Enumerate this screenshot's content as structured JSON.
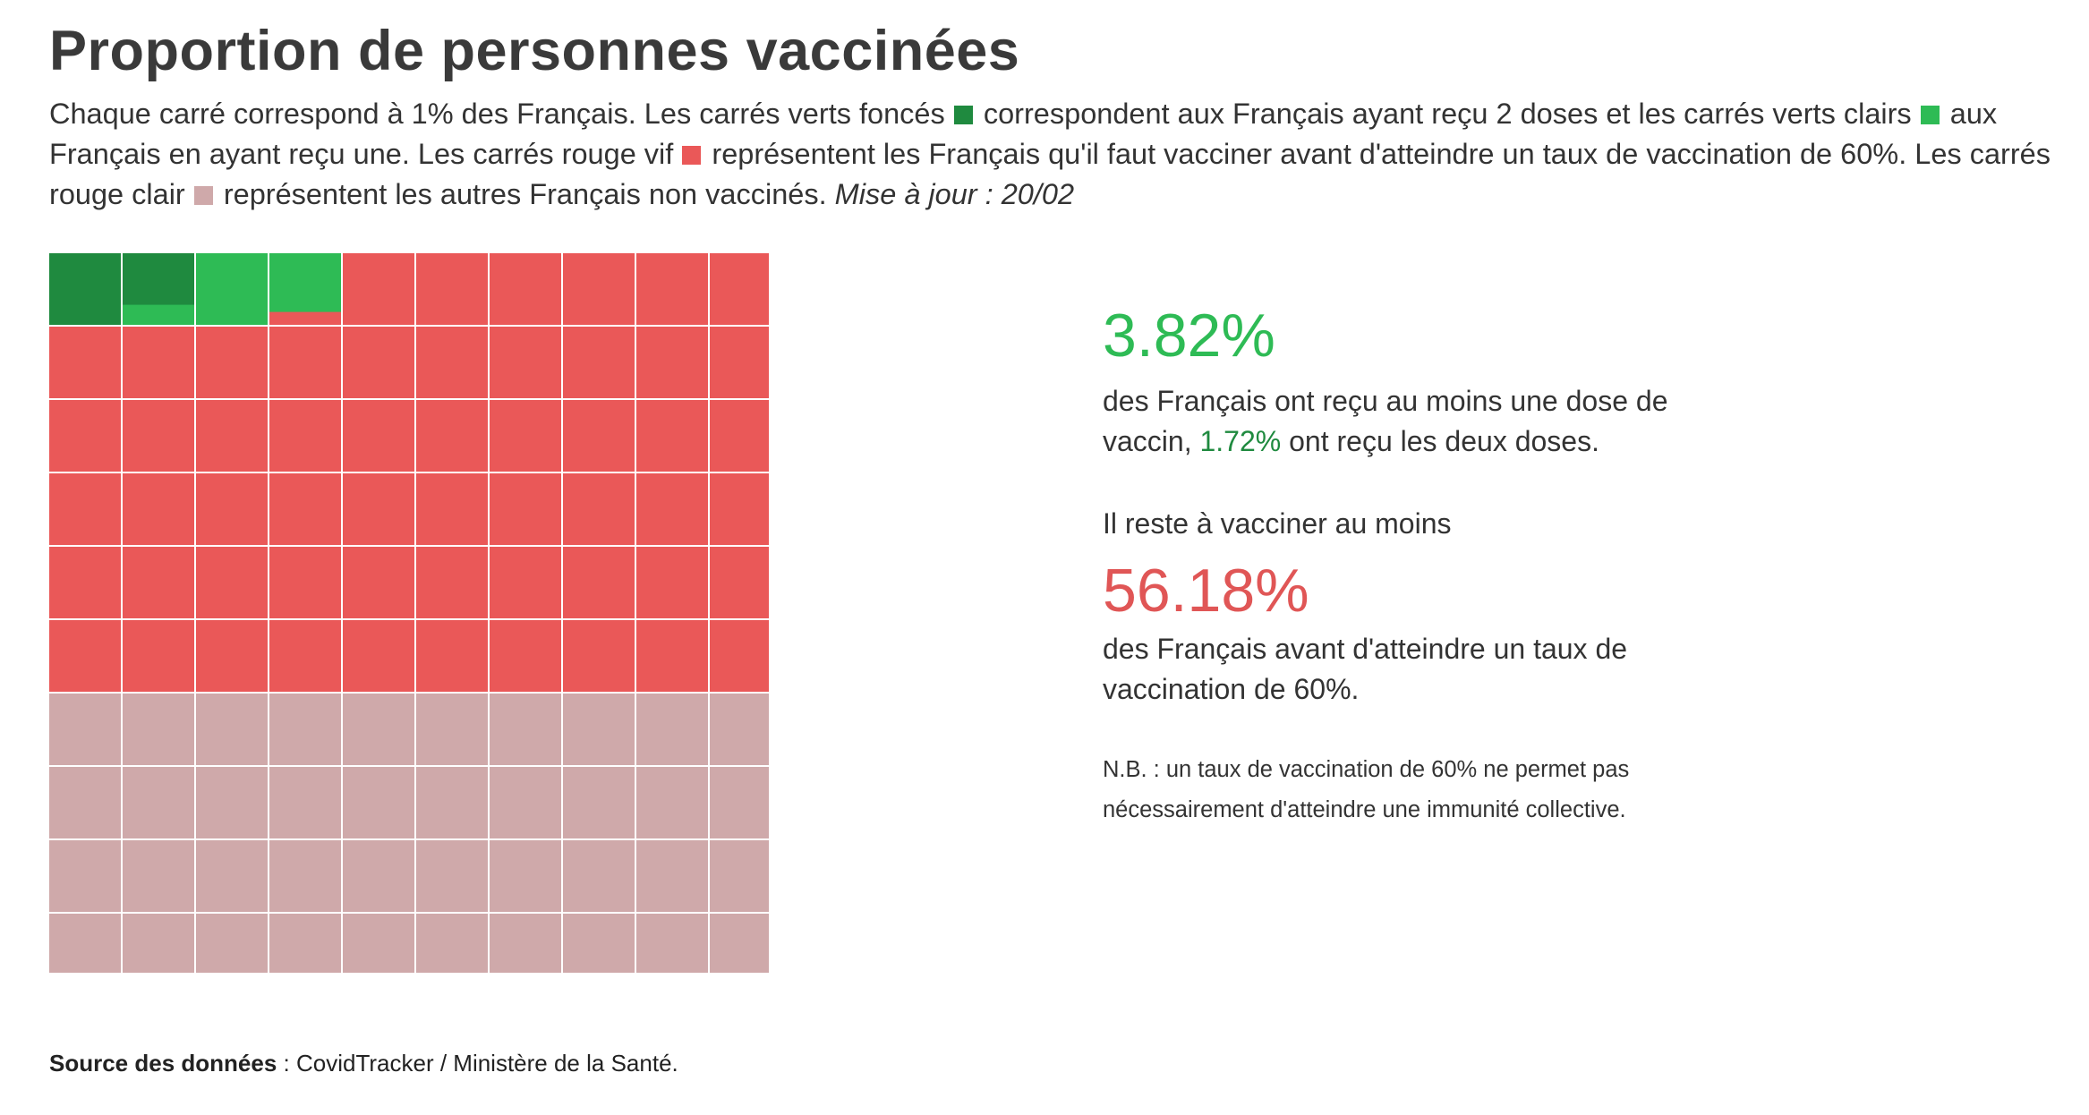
{
  "title": "Proportion de personnes vaccinées",
  "intro": {
    "part1": "Chaque carré correspond à 1% des Français. Les carrés verts foncés",
    "part2": "correspondent aux Français ayant reçu 2 doses et les carrés verts clairs",
    "part3": "aux Français en ayant reçu une. Les carrés rouge vif",
    "part4": "représentent les Français qu'il faut vacciner avant d'atteindre un taux de vaccination de 60%. Les carrés rouge clair",
    "part5": "représentent les autres Français non vaccinés.",
    "update": "Mise à jour : 20/02"
  },
  "colors": {
    "dark_green": "#1f8a3f",
    "light_green": "#2ebb55",
    "bright_red": "#ea5858",
    "light_red": "#cfa9aa"
  },
  "stats": {
    "first_dose_value": "3.82%",
    "first_dose_text_a": "des Français ont reçu au moins une dose de vaccin,",
    "second_dose_value": "1.72%",
    "first_dose_text_b": "ont reçu les deux doses.",
    "remaining_lead": "Il reste à vacciner au moins",
    "remaining_value": "56.18%",
    "remaining_text": "des Français avant d'atteindre un taux de vaccination de 60%.",
    "note": "N.B. : un taux de vaccination de 60% ne permet pas nécessairement d'atteindre une immunité collective."
  },
  "source": {
    "label": "Source des données",
    "text": " : CovidTracker / Ministère de la Santé."
  },
  "chart_data": {
    "type": "waffle",
    "unit": "1% des Français",
    "total": 100,
    "series": [
      {
        "name": "2 doses",
        "value": 1.72,
        "color": "#1f8a3f"
      },
      {
        "name": "1 dose",
        "value": 2.1,
        "color": "#2ebb55"
      },
      {
        "name": "à vacciner avant 60%",
        "value": 56.18,
        "color": "#ea5858"
      },
      {
        "name": "autres non vaccinés",
        "value": 40.0,
        "color": "#cfa9aa"
      }
    ]
  }
}
